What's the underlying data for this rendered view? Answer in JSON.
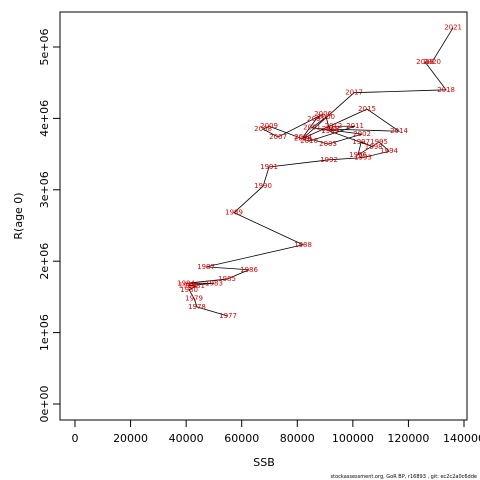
{
  "chart_data": {
    "type": "connected-scatter",
    "xlabel": "SSB",
    "ylabel": "R(age 0)",
    "footer": "stockassessment.org, GoR BP, r16893 , git: ec2c2a0c6dde",
    "labels": [
      1977,
      1978,
      1979,
      1980,
      1981,
      1982,
      1983,
      1984,
      1985,
      1986,
      1987,
      1988,
      1989,
      1990,
      1991,
      1992,
      1993,
      1994,
      1995,
      1996,
      1997,
      1998,
      1999,
      2000,
      2001,
      2002,
      2003,
      2004,
      2005,
      2006,
      2007,
      2008,
      2009,
      2010,
      2011,
      2012,
      2013,
      2014,
      2015,
      2016,
      2017,
      2018,
      2019,
      2020,
      2021
    ],
    "x": [
      55080,
      43900,
      42840,
      41040,
      43560,
      40500,
      50040,
      39960,
      54720,
      62640,
      47160,
      82080,
      57240,
      67680,
      69840,
      91440,
      103680,
      113040,
      109440,
      101880,
      103000,
      107500,
      91800,
      90360,
      85320,
      103320,
      91080,
      82080,
      86760,
      89280,
      73080,
      67680,
      69840,
      84240,
      100800,
      93000,
      92000,
      116640,
      105120,
      82000,
      100440,
      133560,
      126000,
      128520,
      136080
    ],
    "values": [
      1230000,
      1360000,
      1480000,
      1600000,
      1650000,
      1660000,
      1690000,
      1690000,
      1750000,
      1880000,
      1920000,
      2230000,
      2680000,
      3050000,
      3320000,
      3420000,
      3450000,
      3540000,
      3670000,
      3490000,
      3670000,
      3600000,
      3820000,
      4020000,
      3870000,
      3780000,
      3640000,
      3740000,
      3990000,
      4060000,
      3740000,
      3850000,
      3890000,
      3680000,
      3890000,
      3890000,
      3850000,
      3820000,
      4130000,
      3720000,
      4360000,
      4400000,
      4790000,
      4790000,
      5270000
    ],
    "color": "#e00000",
    "line_color": "#000000",
    "xlim": [
      -5400,
      141080
    ],
    "ylim": [
      -224000,
      5490000
    ],
    "xticks": [
      0,
      20000,
      40000,
      60000,
      80000,
      100000,
      120000,
      140000
    ],
    "yticks": [
      {
        "value": 0,
        "label": "0e+00"
      },
      {
        "value": 1000000,
        "label": "1e+06"
      },
      {
        "value": 2000000,
        "label": "2e+06"
      },
      {
        "value": 3000000,
        "label": "3e+06"
      },
      {
        "value": 4000000,
        "label": "4e+06"
      },
      {
        "value": 5000000,
        "label": "5e+06"
      }
    ]
  }
}
